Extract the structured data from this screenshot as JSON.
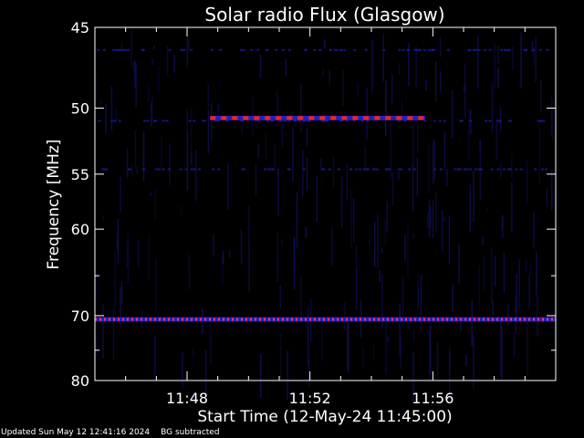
{
  "chart_data": {
    "type": "heatmap",
    "title": "Solar radio Flux (Glasgow)",
    "xlabel": "Start Time (12-May-24 11:45:00)",
    "ylabel": "Frequency [MHz]",
    "x_range_minutes": [
      "11:45:00",
      "12:00:00"
    ],
    "y_range_mhz": [
      45,
      80
    ],
    "y_scale": "reciprocal",
    "x_ticks": [
      "11:48",
      "11:52",
      "11:56"
    ],
    "x_minor_ticks": [
      "11:45",
      "11:46",
      "11:47",
      "11:49",
      "11:50",
      "11:51",
      "11:53",
      "11:54",
      "11:55",
      "11:57",
      "11:58",
      "11:59"
    ],
    "y_major_ticks": [
      45,
      50,
      55,
      60,
      70,
      80
    ],
    "y_minor_ticks": [
      65,
      75
    ],
    "bands": [
      {
        "frequency_mhz": 50.7,
        "start": "11:48:45",
        "end": "11:55:45",
        "intensity": "high",
        "color": "#ff2020"
      },
      {
        "frequency_mhz": 70.5,
        "start": "11:45:00",
        "end": "12:00:00",
        "intensity": "medium",
        "color": "#ff3366"
      }
    ],
    "colors": {
      "background": "#000000",
      "noise": "#10105a",
      "band_high": "#ff2020",
      "band_mid": "#ff3366",
      "axis": "#ffffff"
    }
  },
  "footer": {
    "updated": "Updated Sun May 12 12:41:16 2024",
    "note": "BG subtracted"
  }
}
